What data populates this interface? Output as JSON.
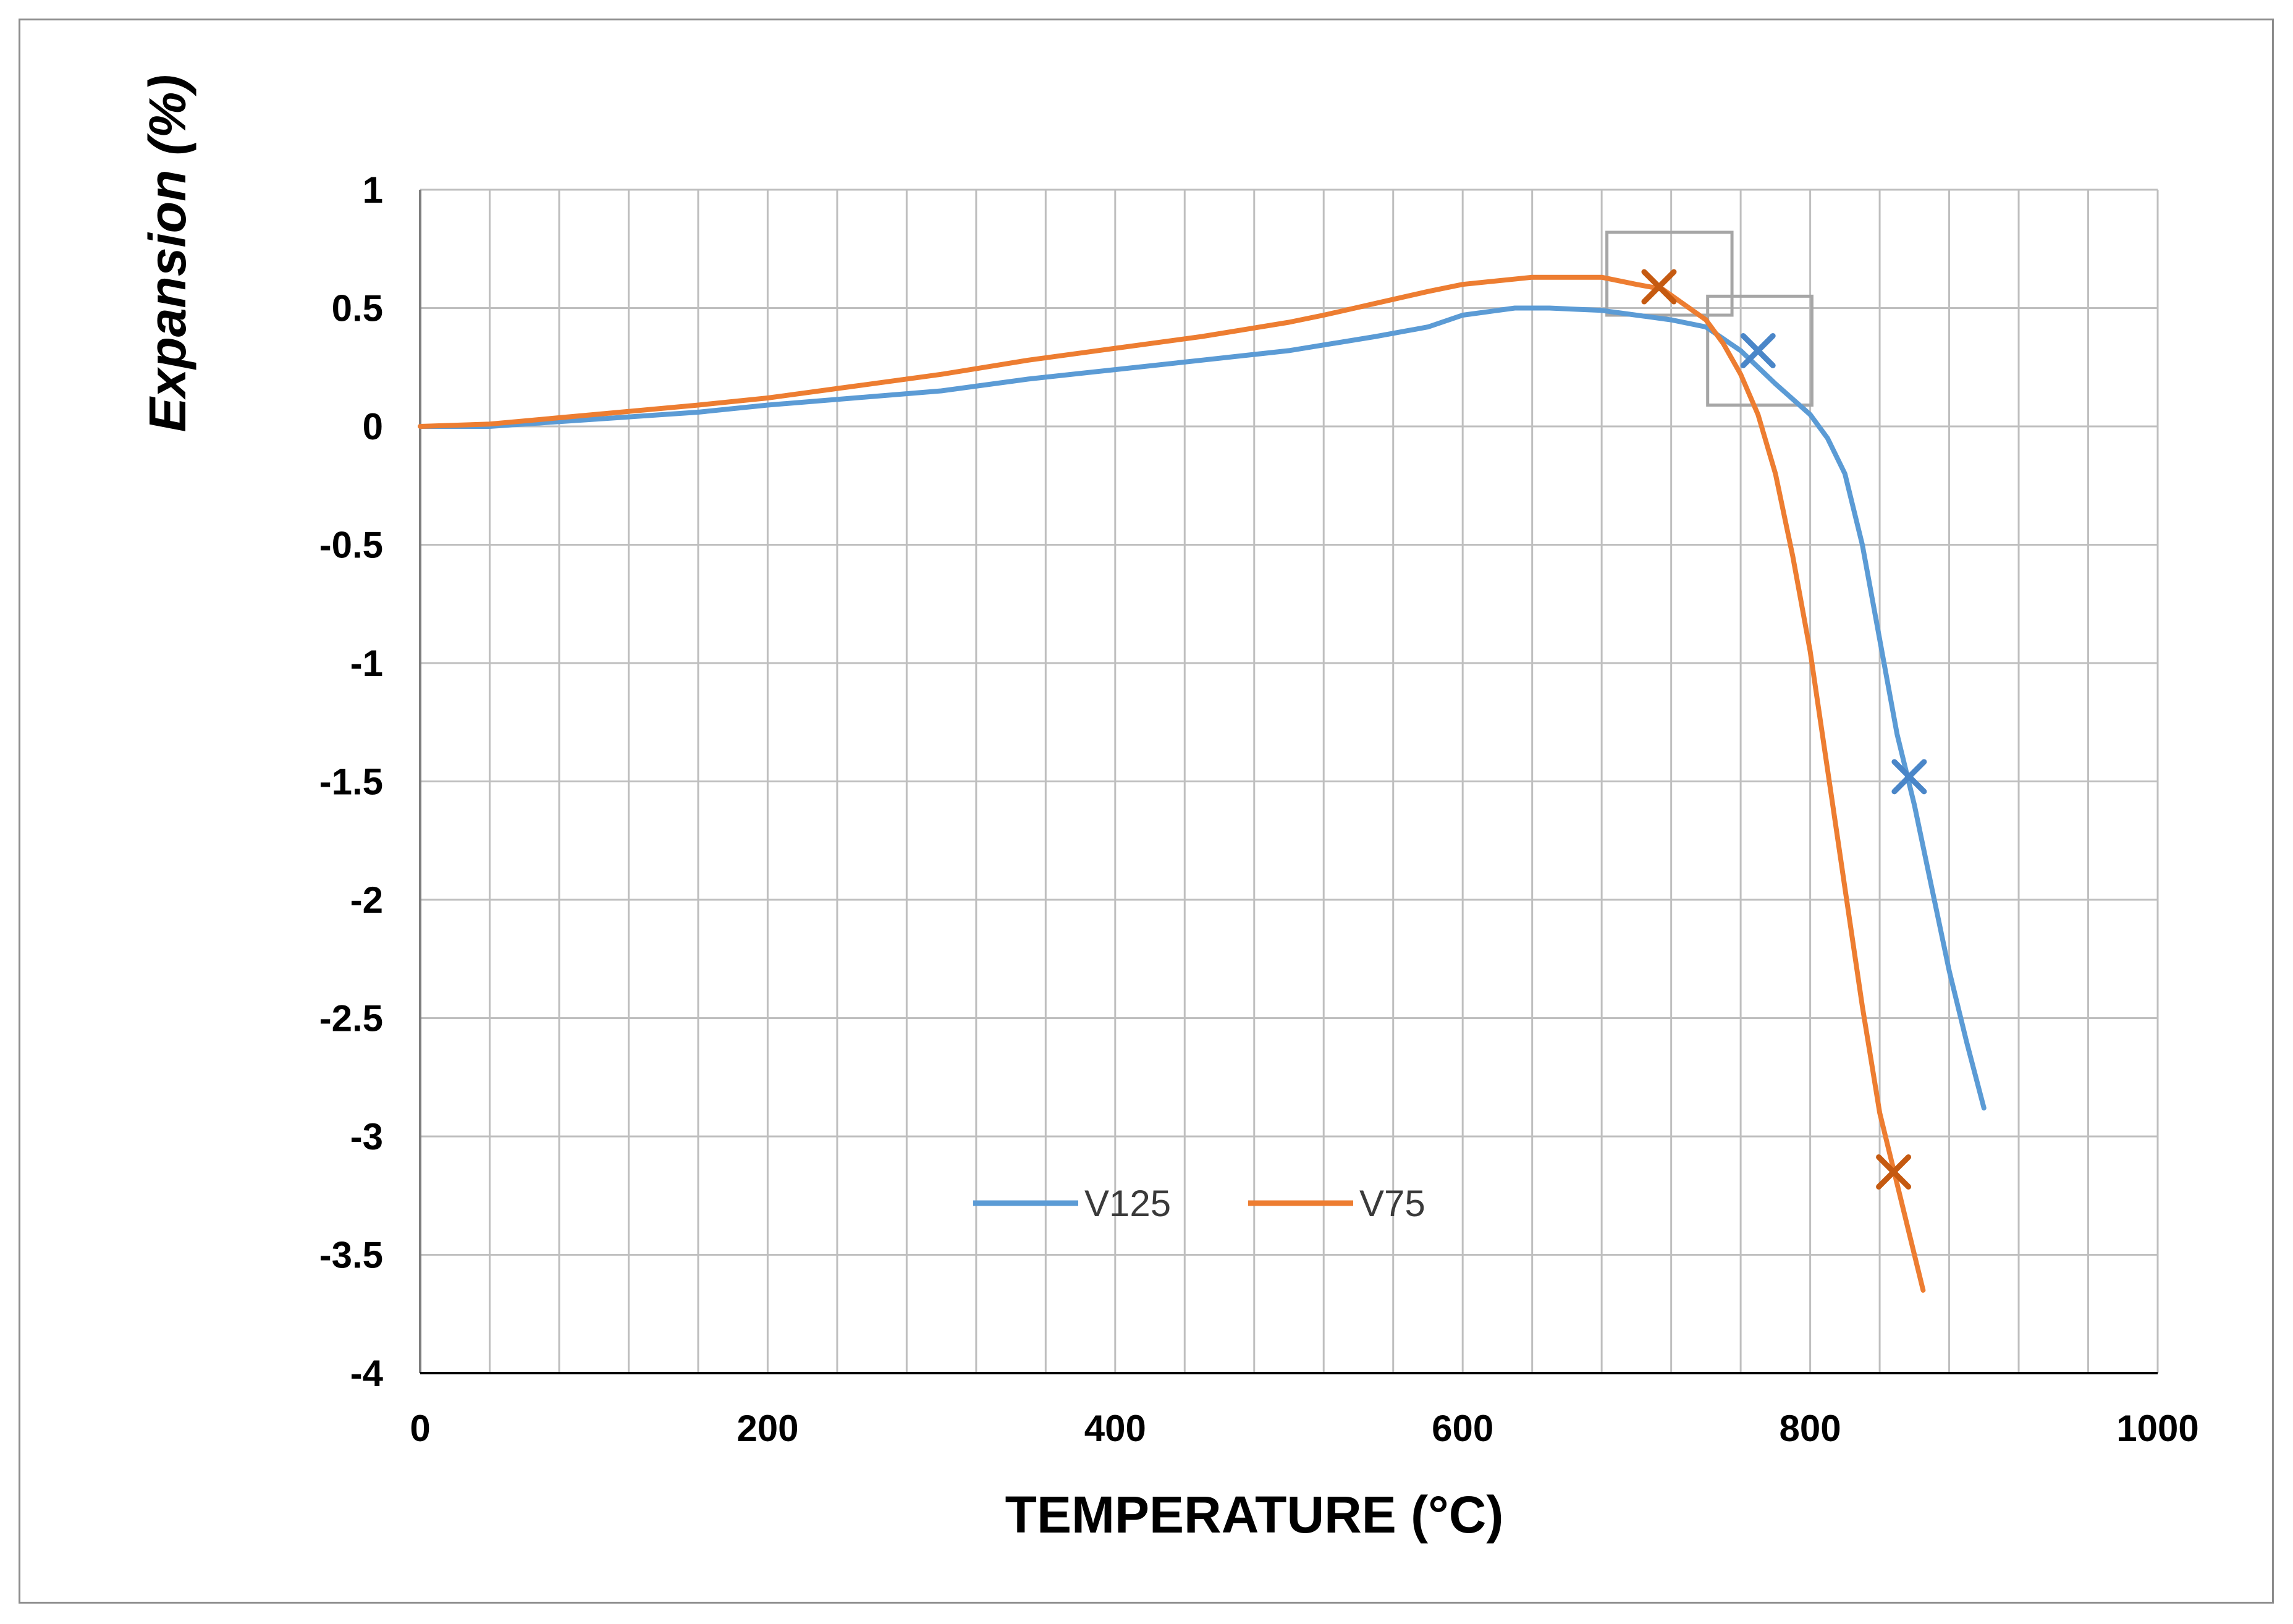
{
  "chart_data": {
    "type": "line",
    "title": "",
    "xlabel": "TEMPERATURE (°C)",
    "ylabel": "Expansion (%)",
    "xlim": [
      0,
      1000
    ],
    "ylim": [
      -4,
      1
    ],
    "x_major_ticks": [
      0,
      200,
      400,
      600,
      800,
      1000
    ],
    "x_minor_step": 40,
    "y_ticks": [
      1,
      0.5,
      0,
      -0.5,
      -1,
      -1.5,
      -2,
      -2.5,
      -3,
      -3.5,
      -4
    ],
    "grid": true,
    "legend_position": "bottom-center",
    "series": [
      {
        "name": "V125",
        "color": "#5b9bd5",
        "x": [
          0,
          40,
          100,
          160,
          200,
          250,
          300,
          350,
          400,
          450,
          500,
          550,
          580,
          600,
          630,
          650,
          680,
          700,
          720,
          740,
          760,
          780,
          800,
          810,
          820,
          830,
          840,
          850,
          860,
          870,
          880,
          890,
          900
        ],
        "y": [
          0,
          0,
          0.03,
          0.06,
          0.09,
          0.12,
          0.15,
          0.2,
          0.24,
          0.28,
          0.32,
          0.38,
          0.42,
          0.47,
          0.5,
          0.5,
          0.49,
          0.47,
          0.45,
          0.42,
          0.32,
          0.18,
          0.05,
          -0.05,
          -0.2,
          -0.5,
          -0.9,
          -1.3,
          -1.6,
          -1.95,
          -2.3,
          -2.6,
          -2.88
        ]
      },
      {
        "name": "V75",
        "color": "#ed7d31",
        "x": [
          0,
          40,
          100,
          160,
          200,
          250,
          300,
          350,
          400,
          450,
          500,
          520,
          550,
          580,
          600,
          640,
          660,
          680,
          700,
          715,
          740,
          750,
          760,
          770,
          780,
          790,
          800,
          810,
          820,
          830,
          840,
          850,
          860,
          865
        ],
        "y": [
          0,
          0.01,
          0.05,
          0.09,
          0.12,
          0.17,
          0.22,
          0.28,
          0.33,
          0.38,
          0.44,
          0.47,
          0.52,
          0.57,
          0.6,
          0.63,
          0.63,
          0.63,
          0.6,
          0.58,
          0.45,
          0.35,
          0.22,
          0.05,
          -0.2,
          -0.55,
          -0.95,
          -1.45,
          -1.95,
          -2.45,
          -2.9,
          -3.2,
          -3.5,
          -3.65
        ]
      }
    ],
    "markers": [
      {
        "series": "V125",
        "symbol": "X",
        "x": 770,
        "y": 0.32,
        "color": "#4a86c8"
      },
      {
        "series": "V125",
        "symbol": "X",
        "x": 857,
        "y": -1.48,
        "color": "#4a86c8"
      },
      {
        "series": "V75",
        "symbol": "X",
        "x": 713,
        "y": 0.59,
        "color": "#c55a11"
      },
      {
        "series": "V75",
        "symbol": "X",
        "x": 848,
        "y": -3.15,
        "color": "#c55a11"
      }
    ],
    "annotation_boxes": [
      {
        "x_range": [
          683,
          755
        ],
        "y_range": [
          0.47,
          0.82
        ],
        "color": "#a6a6a6"
      },
      {
        "x_range": [
          741,
          801
        ],
        "y_range": [
          0.09,
          0.55
        ],
        "color": "#a6a6a6"
      }
    ]
  }
}
